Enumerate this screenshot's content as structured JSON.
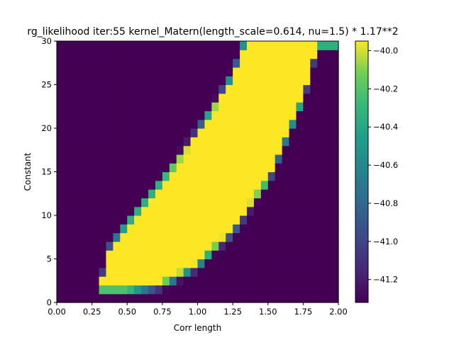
{
  "chart_data": {
    "type": "heatmap",
    "title": "rg_likelihood iter:55 kernel_Matern(length_scale=0.614, nu=1.5) * 1.17**2",
    "xlabel": "Corr length",
    "ylabel": "Constant",
    "xlim": [
      0.0,
      2.0
    ],
    "ylim": [
      0,
      30
    ],
    "x_ticks": [
      "0.00",
      "0.25",
      "0.50",
      "0.75",
      "1.00",
      "1.25",
      "1.50",
      "1.75",
      "2.00"
    ],
    "y_ticks": [
      "0",
      "5",
      "10",
      "15",
      "20",
      "25",
      "30"
    ],
    "colorbar": {
      "label": "",
      "range": [
        -41.32,
        -39.95
      ],
      "ticks": [
        "-40.0",
        "-40.2",
        "-40.4",
        "-40.6",
        "-40.8",
        "-41.0",
        "-41.2"
      ],
      "colormap": "viridis"
    },
    "grid": false,
    "grid_size": {
      "nx": 40,
      "ny": 30
    },
    "high_region": {
      "description_values": "yellow band (value ~ -39.95) bounded by curves",
      "lower_boundary": [
        [
          0.35,
          1.9
        ],
        [
          0.5,
          1.9
        ],
        [
          0.75,
          2.6
        ],
        [
          1.0,
          4.8
        ],
        [
          1.25,
          8.8
        ],
        [
          1.5,
          14.5
        ],
        [
          1.75,
          24.0
        ],
        [
          1.85,
          30
        ]
      ],
      "upper_boundary": [
        [
          0.33,
          2.5
        ],
        [
          0.35,
          5.0
        ],
        [
          0.5,
          8.5
        ],
        [
          0.75,
          13.5
        ],
        [
          1.0,
          19.0
        ],
        [
          1.25,
          25.5
        ],
        [
          1.35,
          30
        ]
      ]
    }
  }
}
